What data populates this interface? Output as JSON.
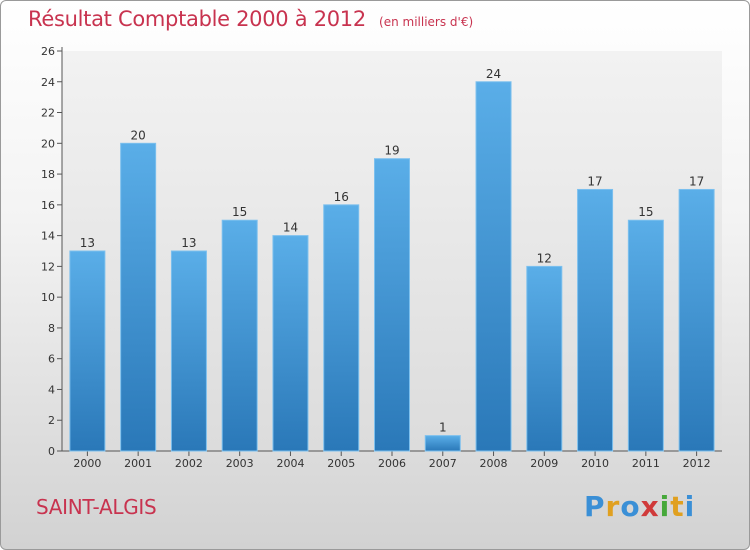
{
  "chart_data": {
    "type": "bar",
    "title": "Résultat Comptable 2000 à 2012",
    "unit": "(en milliers d'€)",
    "categories": [
      "2000",
      "2001",
      "2002",
      "2003",
      "2004",
      "2005",
      "2006",
      "2007",
      "2008",
      "2009",
      "2010",
      "2011",
      "2012"
    ],
    "values": [
      13,
      20,
      13,
      15,
      14,
      16,
      19,
      1,
      24,
      12,
      17,
      15,
      17
    ],
    "ylim": [
      0,
      26
    ],
    "yticks": [
      0,
      2,
      4,
      6,
      8,
      10,
      12,
      14,
      16,
      18,
      20,
      22,
      24,
      26
    ],
    "grid": false,
    "bar_color_top": "#5aaee8",
    "bar_color_bottom": "#2a78b8"
  },
  "place_name": "SAINT-ALGIS",
  "logo": {
    "letters": [
      "P",
      "r",
      "o",
      "x",
      "i",
      "t",
      "i"
    ],
    "colors": [
      "#3a8fd6",
      "#e0a020",
      "#3a8fd6",
      "#d03a3a",
      "#46a83a",
      "#e0a020",
      "#3a8fd6"
    ]
  }
}
